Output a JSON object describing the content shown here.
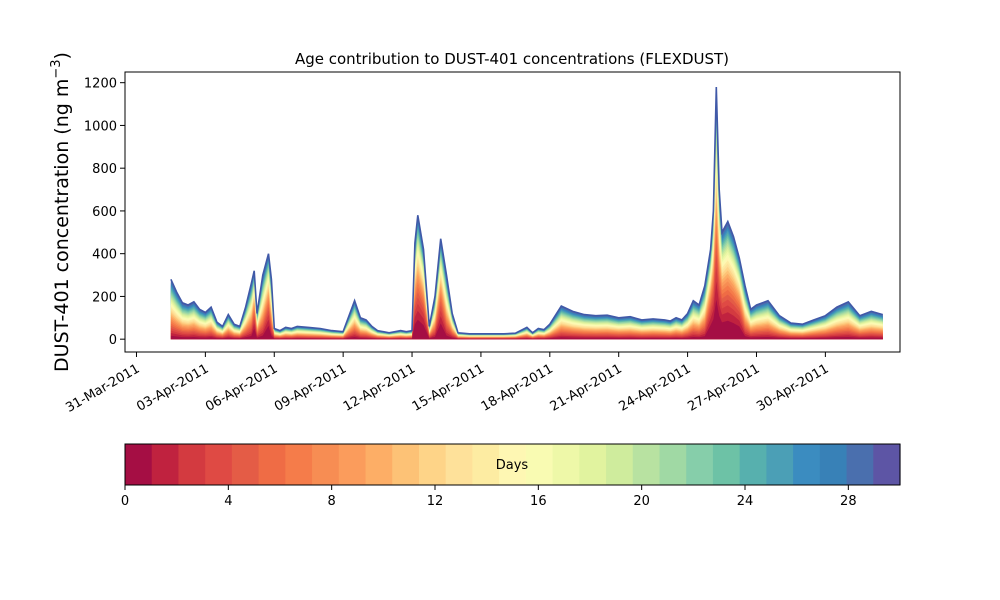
{
  "chart_data": {
    "type": "area",
    "title": "Age contribution to DUST-401 concentrations (FLEXDUST)",
    "ylabel_main": "DUST-401 concentration (ng m",
    "ylabel_sup": "−3",
    "ylabel_close": ")",
    "ylim": [
      -60,
      1250
    ],
    "yticks": [
      0,
      200,
      400,
      600,
      800,
      1000,
      1200
    ],
    "xlim": [
      "2011-03-30T12:00",
      "2011-05-03T06:00"
    ],
    "xticks": [
      "2011-03-31",
      "2011-04-03",
      "2011-04-06",
      "2011-04-09",
      "2011-04-12",
      "2011-04-15",
      "2011-04-18",
      "2011-04-21",
      "2011-04-24",
      "2011-04-27",
      "2011-04-30"
    ],
    "xtick_labels": [
      "31-Mar-2011",
      "03-Apr-2011",
      "06-Apr-2011",
      "09-Apr-2011",
      "12-Apr-2011",
      "15-Apr-2011",
      "18-Apr-2011",
      "21-Apr-2011",
      "24-Apr-2011",
      "27-Apr-2011",
      "30-Apr-2011"
    ],
    "grid": false,
    "total_concentration": {
      "x": [
        "2011-04-01T12:00",
        "2011-04-01T18:00",
        "2011-04-02T00:00",
        "2011-04-02T06:00",
        "2011-04-02T12:00",
        "2011-04-02T18:00",
        "2011-04-03T00:00",
        "2011-04-03T06:00",
        "2011-04-03T12:00",
        "2011-04-03T18:00",
        "2011-04-04T00:00",
        "2011-04-04T06:00",
        "2011-04-04T12:00",
        "2011-04-04T18:00",
        "2011-04-05T00:00",
        "2011-04-05T03:00",
        "2011-04-05T06:00",
        "2011-04-05T12:00",
        "2011-04-05T18:00",
        "2011-04-05T21:00",
        "2011-04-06T00:00",
        "2011-04-06T06:00",
        "2011-04-06T12:00",
        "2011-04-06T18:00",
        "2011-04-07T00:00",
        "2011-04-07T12:00",
        "2011-04-08T00:00",
        "2011-04-08T12:00",
        "2011-04-09T00:00",
        "2011-04-09T12:00",
        "2011-04-09T18:00",
        "2011-04-10T00:00",
        "2011-04-10T06:00",
        "2011-04-10T12:00",
        "2011-04-10T18:00",
        "2011-04-11T00:00",
        "2011-04-11T12:00",
        "2011-04-11T18:00",
        "2011-04-12T00:00",
        "2011-04-12T03:00",
        "2011-04-12T06:00",
        "2011-04-12T12:00",
        "2011-04-12T18:00",
        "2011-04-13T00:00",
        "2011-04-13T06:00",
        "2011-04-13T12:00",
        "2011-04-13T18:00",
        "2011-04-14T00:00",
        "2011-04-14T12:00",
        "2011-04-15T00:00",
        "2011-04-15T12:00",
        "2011-04-16T00:00",
        "2011-04-16T12:00",
        "2011-04-17T00:00",
        "2011-04-17T06:00",
        "2011-04-17T12:00",
        "2011-04-17T18:00",
        "2011-04-18T00:00",
        "2011-04-18T12:00",
        "2011-04-19T00:00",
        "2011-04-19T12:00",
        "2011-04-20T00:00",
        "2011-04-20T12:00",
        "2011-04-21T00:00",
        "2011-04-21T12:00",
        "2011-04-22T00:00",
        "2011-04-22T12:00",
        "2011-04-23T00:00",
        "2011-04-23T06:00",
        "2011-04-23T12:00",
        "2011-04-23T18:00",
        "2011-04-24T00:00",
        "2011-04-24T06:00",
        "2011-04-24T12:00",
        "2011-04-24T18:00",
        "2011-04-25T00:00",
        "2011-04-25T03:00",
        "2011-04-25T06:00",
        "2011-04-25T09:00",
        "2011-04-25T12:00",
        "2011-04-25T18:00",
        "2011-04-26T00:00",
        "2011-04-26T06:00",
        "2011-04-26T12:00",
        "2011-04-26T18:00",
        "2011-04-27T00:00",
        "2011-04-27T12:00",
        "2011-04-28T00:00",
        "2011-04-28T12:00",
        "2011-04-29T00:00",
        "2011-04-29T12:00",
        "2011-04-30T00:00",
        "2011-04-30T12:00",
        "2011-05-01T00:00",
        "2011-05-01T12:00",
        "2011-05-02T00:00",
        "2011-05-02T12:00"
      ],
      "values": [
        280,
        220,
        170,
        160,
        175,
        140,
        125,
        150,
        80,
        60,
        115,
        70,
        60,
        150,
        260,
        320,
        120,
        300,
        400,
        280,
        50,
        40,
        55,
        50,
        60,
        55,
        50,
        40,
        35,
        180,
        100,
        90,
        60,
        40,
        35,
        30,
        40,
        35,
        40,
        450,
        580,
        420,
        60,
        200,
        470,
        300,
        120,
        30,
        25,
        25,
        25,
        25,
        28,
        55,
        30,
        50,
        45,
        70,
        155,
        130,
        115,
        110,
        112,
        100,
        105,
        90,
        95,
        90,
        85,
        100,
        90,
        120,
        180,
        160,
        250,
        420,
        600,
        1180,
        700,
        500,
        550,
        480,
        380,
        250,
        140,
        160,
        180,
        110,
        75,
        70,
        90,
        110,
        150,
        175,
        110,
        130,
        115
      ]
    },
    "colorbar": {
      "label": "Days",
      "min": 0,
      "max": 30,
      "ticks": [
        0,
        4,
        8,
        12,
        16,
        20,
        24,
        28
      ],
      "colors": [
        "#a50e44",
        "#c0223f",
        "#d33a40",
        "#df4a44",
        "#e45c46",
        "#ef6c45",
        "#f57c4a",
        "#f78d53",
        "#fb9c5c",
        "#fdae66",
        "#fdc276",
        "#fed488",
        "#fee19a",
        "#fdeca2",
        "#fef7b3",
        "#f9fbb2",
        "#eef8a8",
        "#e1f39f",
        "#cfec9d",
        "#b8e2a1",
        "#a0d9a4",
        "#86ceaa",
        "#6dc2a6",
        "#57b0ae",
        "#4b9fb6",
        "#3b8cc0",
        "#3881b7",
        "#4a6fae",
        "#5d55a5"
      ]
    }
  }
}
